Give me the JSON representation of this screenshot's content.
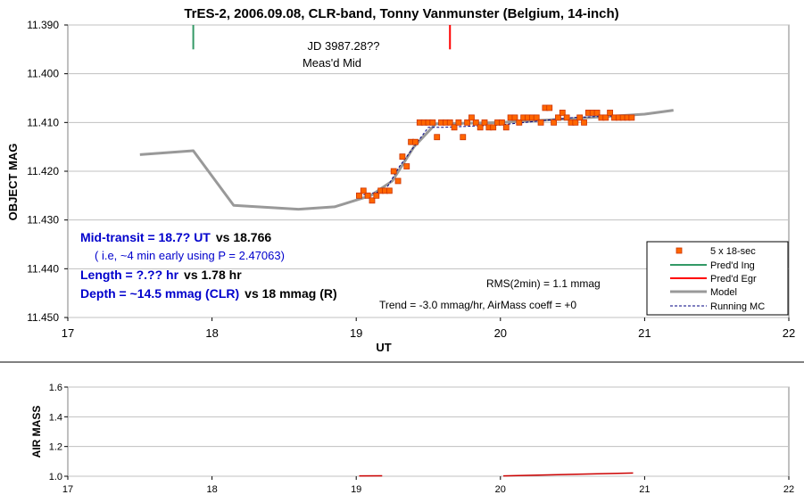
{
  "chart_data": [
    {
      "type": "scatter",
      "title": "TrES-2, 2006.09.08, CLR-band, Tonny Vanmunster (Belgium, 14-inch)",
      "xlabel": "UT",
      "ylabel": "OBJECT MAG",
      "xlim": [
        17,
        22
      ],
      "ylim": [
        11.39,
        11.45
      ],
      "y_inverted": true,
      "grid": "horizontal",
      "x_ticks": [
        "17",
        "18",
        "19",
        "20",
        "21",
        "22"
      ],
      "y_ticks": [
        "11.390",
        "11.400",
        "11.410",
        "11.420",
        "11.430",
        "11.440",
        "11.450"
      ],
      "annotations": {
        "jd": "JD 3987.28??",
        "meas_mid": "Meas'd Mid",
        "rms": "RMS(2min) = 1.1 mmag",
        "trend": "Trend = -3.0 mmag/hr, AirMass coeff = +0",
        "midtransit_a": "Mid-transit = 18.7? UT",
        "midtransit_b": "vs 18.766",
        "early_note": "( i.e, ~4 min early using P = 2.47063)",
        "length_a": "Length = ?.?? hr",
        "length_b": "vs 1.78 hr",
        "depth_a": "Depth = ~14.5 mmag (CLR)",
        "depth_b": "vs 18 mmag (R)"
      },
      "legend_position": "bottom-right",
      "series": [
        {
          "name": "5 x 18-sec",
          "color": "#ff6600",
          "marker": "square",
          "x": [
            19.02,
            19.05,
            19.08,
            19.11,
            19.14,
            19.17,
            19.2,
            19.23,
            19.26,
            19.29,
            19.32,
            19.35,
            19.38,
            19.41,
            19.44,
            19.47,
            19.5,
            19.53,
            19.56,
            19.59,
            19.62,
            19.65,
            19.68,
            19.71,
            19.74,
            19.77,
            19.8,
            19.83,
            19.86,
            19.89,
            19.92,
            19.95,
            19.98,
            20.01,
            20.04,
            20.07,
            20.1,
            20.13,
            20.16,
            20.19,
            20.22,
            20.25,
            20.28,
            20.31,
            20.34,
            20.37,
            20.4,
            20.43,
            20.46,
            20.49,
            20.52,
            20.55,
            20.58,
            20.61,
            20.64,
            20.67,
            20.7,
            20.73,
            20.76,
            20.79,
            20.82,
            20.85,
            20.88,
            20.91
          ],
          "y": [
            11.425,
            11.424,
            11.425,
            11.426,
            11.425,
            11.424,
            11.424,
            11.424,
            11.42,
            11.422,
            11.417,
            11.419,
            11.414,
            11.414,
            11.41,
            11.41,
            11.41,
            11.41,
            11.413,
            11.41,
            11.41,
            11.41,
            11.411,
            11.41,
            11.413,
            11.41,
            11.409,
            11.41,
            11.411,
            11.41,
            11.411,
            11.411,
            11.41,
            11.41,
            11.411,
            11.409,
            11.409,
            11.41,
            11.409,
            11.409,
            11.409,
            11.409,
            11.41,
            11.407,
            11.407,
            11.41,
            11.409,
            11.408,
            11.409,
            11.41,
            11.41,
            11.409,
            11.41,
            11.408,
            11.408,
            11.408,
            11.409,
            11.409,
            11.408,
            11.409,
            11.409,
            11.409,
            11.409,
            11.409
          ]
        },
        {
          "name": "Pred'd Ing",
          "color": "#339966",
          "x": [
            17.87,
            17.87
          ],
          "y": [
            11.39,
            11.395
          ]
        },
        {
          "name": "Pred'd Egr",
          "color": "#ff0000",
          "x": [
            19.65,
            19.65
          ],
          "y": [
            11.39,
            11.395
          ]
        },
        {
          "name": "Model",
          "color": "#999999",
          "x": [
            17.5,
            17.87,
            18.15,
            18.6,
            18.85,
            19.1,
            19.25,
            19.4,
            19.55,
            20.0,
            20.5,
            21.0,
            21.2
          ],
          "y": [
            11.4166,
            11.4158,
            11.427,
            11.4278,
            11.4273,
            11.425,
            11.422,
            11.415,
            11.4103,
            11.41,
            11.4092,
            11.4083,
            11.4075
          ]
        },
        {
          "name": "Running MC",
          "color": "#000080",
          "style": "dashed",
          "x": [
            19.02,
            19.2,
            19.3,
            19.4,
            19.5,
            19.6,
            20.0,
            20.5,
            20.9
          ],
          "y": [
            11.425,
            11.424,
            11.419,
            11.415,
            11.411,
            11.411,
            11.4105,
            11.409,
            11.4085
          ]
        }
      ]
    },
    {
      "type": "line",
      "xlabel": "",
      "ylabel": "AIR MASS",
      "xlim": [
        17,
        22
      ],
      "ylim": [
        1.0,
        1.6
      ],
      "grid": "horizontal",
      "x_ticks": [
        "17",
        "18",
        "19",
        "20",
        "21",
        "22"
      ],
      "y_ticks": [
        "1.0",
        "1.2",
        "1.4",
        "1.6"
      ],
      "series": [
        {
          "color": "#cc0000",
          "segments": [
            {
              "x": [
                19.02,
                19.18
              ],
              "y": [
                1.002,
                1.003
              ]
            },
            {
              "x": [
                20.02,
                20.92
              ],
              "y": [
                1.002,
                1.022
              ]
            }
          ]
        }
      ]
    }
  ]
}
